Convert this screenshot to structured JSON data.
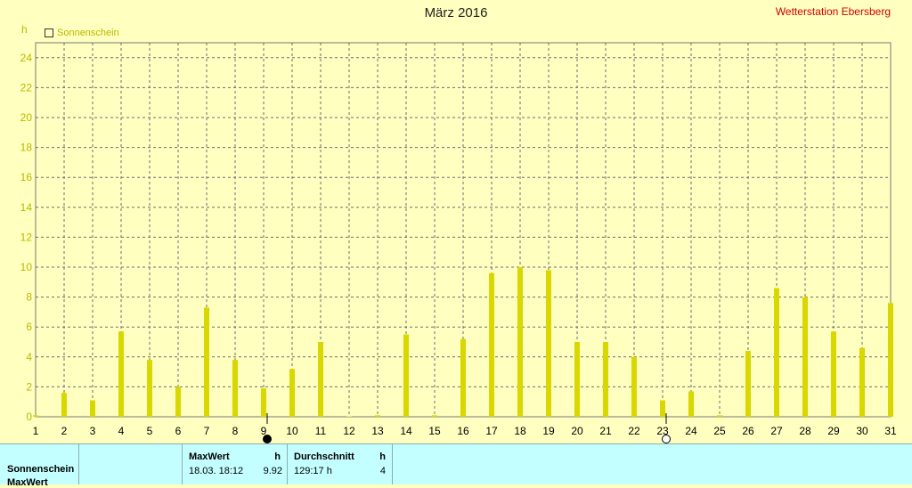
{
  "title": "März 2016",
  "station": "Wetterstation Ebersberg",
  "colors": {
    "bar": "#d8d800",
    "axis_text": "#b8b800",
    "station": "#d00000",
    "background": "#ffffc0",
    "table": "#c4ffff"
  },
  "chart_data": {
    "type": "bar",
    "title": "März 2016",
    "ylabel": "h",
    "xlabel": "",
    "ylim": [
      0,
      25
    ],
    "yticks": [
      0,
      2,
      4,
      6,
      8,
      10,
      12,
      14,
      16,
      18,
      20,
      22,
      24
    ],
    "grid": true,
    "legend_position": "top-left",
    "categories": [
      "1",
      "2",
      "3",
      "4",
      "5",
      "6",
      "7",
      "8",
      "9",
      "10",
      "11",
      "12",
      "13",
      "14",
      "15",
      "16",
      "17",
      "18",
      "19",
      "20",
      "21",
      "22",
      "23",
      "24",
      "25",
      "26",
      "27",
      "28",
      "29",
      "30",
      "31"
    ],
    "series": [
      {
        "name": "Sonnenschein",
        "values": [
          0.1,
          1.6,
          1.1,
          5.7,
          3.8,
          2.0,
          7.3,
          3.8,
          1.9,
          3.2,
          5.0,
          0.0,
          0.1,
          5.5,
          0.1,
          5.2,
          9.6,
          10.0,
          9.8,
          5.0,
          5.0,
          4.0,
          1.1,
          1.7,
          0.1,
          4.4,
          8.6,
          8.0,
          5.7,
          4.6,
          7.6
        ]
      }
    ],
    "markers": [
      {
        "day": 9,
        "symbol": "new-moon-icon"
      },
      {
        "day": 23,
        "symbol": "full-moon-icon"
      }
    ]
  },
  "table": {
    "row_labels": [
      "Sonnenschein",
      "MaxWert"
    ],
    "max_header": "MaxWert",
    "max_unit": "h",
    "max_date": "18.03.  18:12",
    "max_value": "9.92",
    "avg_header": "Durchschnitt",
    "avg_unit": "h",
    "avg_value": "129:17 h",
    "avg_count": "4"
  }
}
